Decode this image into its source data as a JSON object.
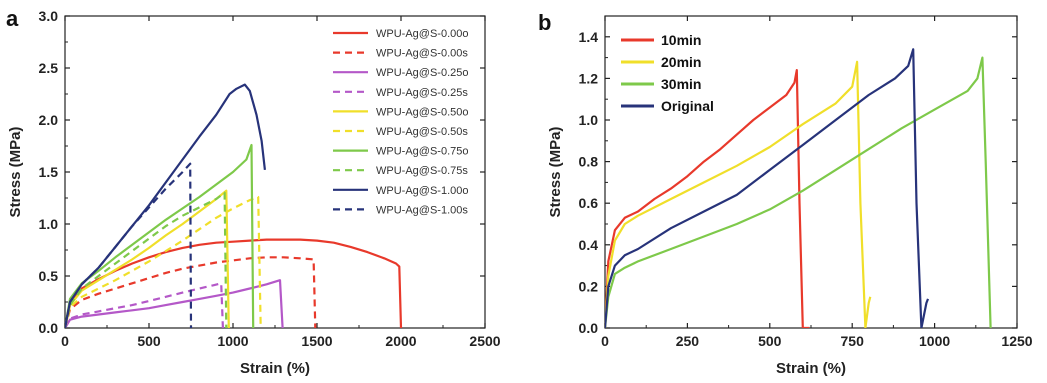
{
  "chart_data": [
    {
      "panel_label": "a",
      "type": "line",
      "xlabel": "Strain  (%)",
      "ylabel": "Stress  (MPa)",
      "xlim": [
        0,
        2500
      ],
      "ylim": [
        0,
        3.0
      ],
      "xticks": [
        0,
        500,
        1000,
        1500,
        2000,
        2500
      ],
      "yticks": [
        0.0,
        0.5,
        1.0,
        1.5,
        2.0,
        2.5,
        3.0
      ],
      "xtick_labels": [
        "0",
        "500",
        "1000",
        "1500",
        "2000",
        "2500"
      ],
      "ytick_labels": [
        "0.0",
        "0.5",
        "1.0",
        "1.5",
        "2.0",
        "2.5",
        "3.0"
      ],
      "legend_position": "top-right",
      "series": [
        {
          "name": "WPU-Ag@S-0.00o",
          "color": "#e8392b",
          "dash": false,
          "points": [
            [
              0,
              0
            ],
            [
              30,
              0.22
            ],
            [
              100,
              0.38
            ],
            [
              200,
              0.47
            ],
            [
              300,
              0.55
            ],
            [
              400,
              0.62
            ],
            [
              500,
              0.68
            ],
            [
              600,
              0.73
            ],
            [
              700,
              0.77
            ],
            [
              800,
              0.8
            ],
            [
              900,
              0.82
            ],
            [
              1000,
              0.83
            ],
            [
              1100,
              0.84
            ],
            [
              1200,
              0.85
            ],
            [
              1300,
              0.85
            ],
            [
              1400,
              0.85
            ],
            [
              1500,
              0.84
            ],
            [
              1600,
              0.82
            ],
            [
              1700,
              0.78
            ],
            [
              1800,
              0.73
            ],
            [
              1900,
              0.67
            ],
            [
              1970,
              0.62
            ],
            [
              1990,
              0.59
            ],
            [
              2000,
              0.0
            ]
          ]
        },
        {
          "name": "WPU-Ag@S-0.00s",
          "color": "#e8392b",
          "dash": true,
          "points": [
            [
              0,
              0
            ],
            [
              30,
              0.18
            ],
            [
              100,
              0.27
            ],
            [
              200,
              0.33
            ],
            [
              300,
              0.38
            ],
            [
              400,
              0.43
            ],
            [
              500,
              0.48
            ],
            [
              600,
              0.53
            ],
            [
              700,
              0.57
            ],
            [
              800,
              0.6
            ],
            [
              900,
              0.63
            ],
            [
              1000,
              0.65
            ],
            [
              1100,
              0.67
            ],
            [
              1200,
              0.68
            ],
            [
              1300,
              0.68
            ],
            [
              1400,
              0.67
            ],
            [
              1480,
              0.66
            ],
            [
              1490,
              0.0
            ]
          ]
        },
        {
          "name": "WPU-Ag@S-0.25o",
          "color": "#b458c8",
          "dash": false,
          "points": [
            [
              0,
              0
            ],
            [
              30,
              0.08
            ],
            [
              100,
              0.11
            ],
            [
              200,
              0.13
            ],
            [
              300,
              0.15
            ],
            [
              400,
              0.17
            ],
            [
              500,
              0.19
            ],
            [
              600,
              0.22
            ],
            [
              700,
              0.25
            ],
            [
              800,
              0.28
            ],
            [
              900,
              0.31
            ],
            [
              1000,
              0.34
            ],
            [
              1100,
              0.38
            ],
            [
              1200,
              0.42
            ],
            [
              1280,
              0.46
            ],
            [
              1295,
              0.0
            ]
          ]
        },
        {
          "name": "WPU-Ag@S-0.25s",
          "color": "#b458c8",
          "dash": true,
          "points": [
            [
              0,
              0
            ],
            [
              30,
              0.09
            ],
            [
              100,
              0.13
            ],
            [
              200,
              0.16
            ],
            [
              300,
              0.19
            ],
            [
              400,
              0.22
            ],
            [
              500,
              0.26
            ],
            [
              600,
              0.3
            ],
            [
              700,
              0.34
            ],
            [
              800,
              0.38
            ],
            [
              880,
              0.41
            ],
            [
              930,
              0.43
            ],
            [
              940,
              0.0
            ]
          ]
        },
        {
          "name": "WPU-Ag@S-0.50o",
          "color": "#f0df2a",
          "dash": false,
          "points": [
            [
              0,
              0
            ],
            [
              30,
              0.22
            ],
            [
              100,
              0.36
            ],
            [
              200,
              0.46
            ],
            [
              300,
              0.56
            ],
            [
              400,
              0.66
            ],
            [
              500,
              0.77
            ],
            [
              600,
              0.89
            ],
            [
              700,
              1.0
            ],
            [
              800,
              1.12
            ],
            [
              900,
              1.24
            ],
            [
              960,
              1.32
            ],
            [
              975,
              0.0
            ]
          ]
        },
        {
          "name": "WPU-Ag@S-0.50s",
          "color": "#f0df2a",
          "dash": true,
          "points": [
            [
              0,
              0
            ],
            [
              30,
              0.2
            ],
            [
              100,
              0.3
            ],
            [
              200,
              0.38
            ],
            [
              300,
              0.46
            ],
            [
              400,
              0.55
            ],
            [
              500,
              0.64
            ],
            [
              600,
              0.74
            ],
            [
              700,
              0.84
            ],
            [
              800,
              0.95
            ],
            [
              900,
              1.06
            ],
            [
              1000,
              1.15
            ],
            [
              1100,
              1.23
            ],
            [
              1150,
              1.26
            ],
            [
              1165,
              0.0
            ]
          ]
        },
        {
          "name": "WPU-Ag@S-0.75o",
          "color": "#7ec94a",
          "dash": false,
          "points": [
            [
              0,
              0
            ],
            [
              30,
              0.28
            ],
            [
              100,
              0.43
            ],
            [
              200,
              0.55
            ],
            [
              300,
              0.68
            ],
            [
              400,
              0.8
            ],
            [
              500,
              0.92
            ],
            [
              600,
              1.04
            ],
            [
              700,
              1.15
            ],
            [
              800,
              1.26
            ],
            [
              900,
              1.38
            ],
            [
              1000,
              1.5
            ],
            [
              1080,
              1.62
            ],
            [
              1110,
              1.76
            ],
            [
              1120,
              0.0
            ]
          ]
        },
        {
          "name": "WPU-Ag@S-0.75s",
          "color": "#7ec94a",
          "dash": true,
          "points": [
            [
              0,
              0
            ],
            [
              30,
              0.22
            ],
            [
              100,
              0.38
            ],
            [
              200,
              0.5
            ],
            [
              300,
              0.62
            ],
            [
              400,
              0.74
            ],
            [
              500,
              0.86
            ],
            [
              600,
              0.98
            ],
            [
              700,
              1.08
            ],
            [
              800,
              1.16
            ],
            [
              900,
              1.24
            ],
            [
              950,
              1.3
            ],
            [
              960,
              0.0
            ]
          ]
        },
        {
          "name": "WPU-Ag@S-1.00o",
          "color": "#27337a",
          "dash": false,
          "points": [
            [
              0,
              0
            ],
            [
              30,
              0.25
            ],
            [
              100,
              0.42
            ],
            [
              200,
              0.58
            ],
            [
              300,
              0.78
            ],
            [
              400,
              0.98
            ],
            [
              500,
              1.18
            ],
            [
              600,
              1.4
            ],
            [
              700,
              1.62
            ],
            [
              800,
              1.84
            ],
            [
              900,
              2.05
            ],
            [
              980,
              2.25
            ],
            [
              1020,
              2.3
            ],
            [
              1070,
              2.34
            ],
            [
              1100,
              2.28
            ],
            [
              1140,
              2.05
            ],
            [
              1170,
              1.8
            ],
            [
              1190,
              1.52
            ]
          ]
        },
        {
          "name": "WPU-Ag@S-1.00s",
          "color": "#27337a",
          "dash": true,
          "points": [
            [
              0,
              0
            ],
            [
              30,
              0.25
            ],
            [
              100,
              0.42
            ],
            [
              200,
              0.58
            ],
            [
              300,
              0.78
            ],
            [
              400,
              0.98
            ],
            [
              500,
              1.16
            ],
            [
              600,
              1.34
            ],
            [
              700,
              1.5
            ],
            [
              745,
              1.58
            ],
            [
              750,
              0.0
            ]
          ]
        }
      ]
    },
    {
      "panel_label": "b",
      "type": "line",
      "xlabel": "Strain  (%)",
      "ylabel": "Stress  (MPa)",
      "xlim": [
        0,
        1250
      ],
      "ylim": [
        0,
        1.5
      ],
      "xticks": [
        0,
        250,
        500,
        750,
        1000,
        1250
      ],
      "yticks": [
        0.0,
        0.2,
        0.4,
        0.6,
        0.8,
        1.0,
        1.2,
        1.4
      ],
      "xtick_labels": [
        "0",
        "250",
        "500",
        "750",
        "1000",
        "1250"
      ],
      "ytick_labels": [
        "0.0",
        "0.2",
        "0.4",
        "0.6",
        "0.8",
        "1.0",
        "1.2",
        "1.4"
      ],
      "legend_position": "top-left",
      "series": [
        {
          "name": "10min",
          "color": "#e8392b",
          "dash": false,
          "points": [
            [
              0,
              0
            ],
            [
              10,
              0.32
            ],
            [
              30,
              0.47
            ],
            [
              60,
              0.53
            ],
            [
              100,
              0.56
            ],
            [
              150,
              0.62
            ],
            [
              200,
              0.67
            ],
            [
              250,
              0.73
            ],
            [
              300,
              0.8
            ],
            [
              350,
              0.86
            ],
            [
              400,
              0.93
            ],
            [
              450,
              1.0
            ],
            [
              500,
              1.06
            ],
            [
              550,
              1.12
            ],
            [
              575,
              1.18
            ],
            [
              582,
              1.24
            ],
            [
              590,
              0.6
            ],
            [
              600,
              0.0
            ],
            [
              620,
              0.0
            ]
          ]
        },
        {
          "name": "20min",
          "color": "#f0df2a",
          "dash": false,
          "points": [
            [
              0,
              0
            ],
            [
              10,
              0.25
            ],
            [
              30,
              0.42
            ],
            [
              60,
              0.5
            ],
            [
              100,
              0.54
            ],
            [
              200,
              0.62
            ],
            [
              300,
              0.7
            ],
            [
              400,
              0.78
            ],
            [
              500,
              0.87
            ],
            [
              600,
              0.98
            ],
            [
              700,
              1.08
            ],
            [
              750,
              1.16
            ],
            [
              765,
              1.28
            ],
            [
              775,
              0.6
            ],
            [
              790,
              0.0
            ],
            [
              800,
              0.12
            ],
            [
              805,
              0.15
            ]
          ]
        },
        {
          "name": "30min",
          "color": "#7ec94a",
          "dash": false,
          "points": [
            [
              0,
              0
            ],
            [
              10,
              0.15
            ],
            [
              30,
              0.26
            ],
            [
              60,
              0.29
            ],
            [
              100,
              0.32
            ],
            [
              200,
              0.38
            ],
            [
              300,
              0.44
            ],
            [
              400,
              0.5
            ],
            [
              500,
              0.57
            ],
            [
              600,
              0.66
            ],
            [
              700,
              0.76
            ],
            [
              800,
              0.86
            ],
            [
              900,
              0.96
            ],
            [
              1000,
              1.05
            ],
            [
              1100,
              1.14
            ],
            [
              1130,
              1.2
            ],
            [
              1145,
              1.3
            ],
            [
              1155,
              0.8
            ],
            [
              1170,
              0.0
            ]
          ]
        },
        {
          "name": "Original",
          "color": "#27337a",
          "dash": false,
          "points": [
            [
              0,
              0
            ],
            [
              10,
              0.2
            ],
            [
              30,
              0.3
            ],
            [
              60,
              0.35
            ],
            [
              100,
              0.38
            ],
            [
              200,
              0.48
            ],
            [
              300,
              0.56
            ],
            [
              400,
              0.64
            ],
            [
              500,
              0.76
            ],
            [
              600,
              0.88
            ],
            [
              700,
              1.0
            ],
            [
              800,
              1.12
            ],
            [
              880,
              1.2
            ],
            [
              920,
              1.26
            ],
            [
              935,
              1.34
            ],
            [
              945,
              0.6
            ],
            [
              960,
              0.0
            ],
            [
              975,
              0.12
            ],
            [
              980,
              0.14
            ]
          ]
        }
      ]
    }
  ]
}
